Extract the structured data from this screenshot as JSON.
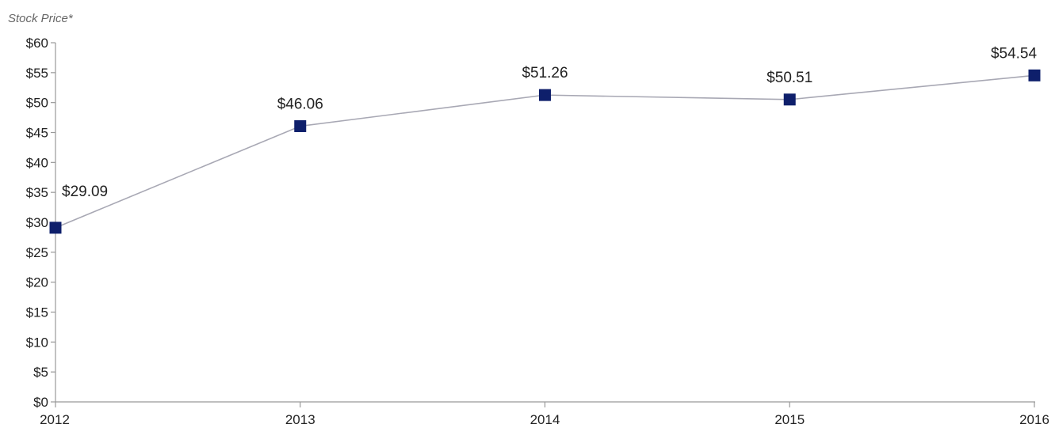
{
  "chart_data": {
    "type": "line",
    "title": "",
    "ylabel": "Stock Price*",
    "xlabel": "",
    "categories": [
      "2012",
      "2013",
      "2014",
      "2015",
      "2016"
    ],
    "series": [
      {
        "values": [
          29.09,
          46.06,
          51.26,
          50.51,
          54.54
        ],
        "labels": [
          "$29.09",
          "$46.06",
          "$51.26",
          "$50.51",
          "$54.54"
        ]
      }
    ],
    "ylim": [
      0,
      60
    ],
    "yticks": [
      0,
      5,
      10,
      15,
      20,
      25,
      30,
      35,
      40,
      45,
      50,
      55,
      60
    ],
    "ytick_labels": [
      "$0",
      "$5",
      "$10",
      "$15",
      "$20",
      "$25",
      "$30",
      "$35",
      "$40",
      "$45",
      "$50",
      "$55",
      "$60"
    ],
    "grid": false,
    "legend": "none",
    "colors": {
      "marker": "#0e1f6b",
      "line": "#a8a8b4",
      "axis": "#999999"
    }
  }
}
